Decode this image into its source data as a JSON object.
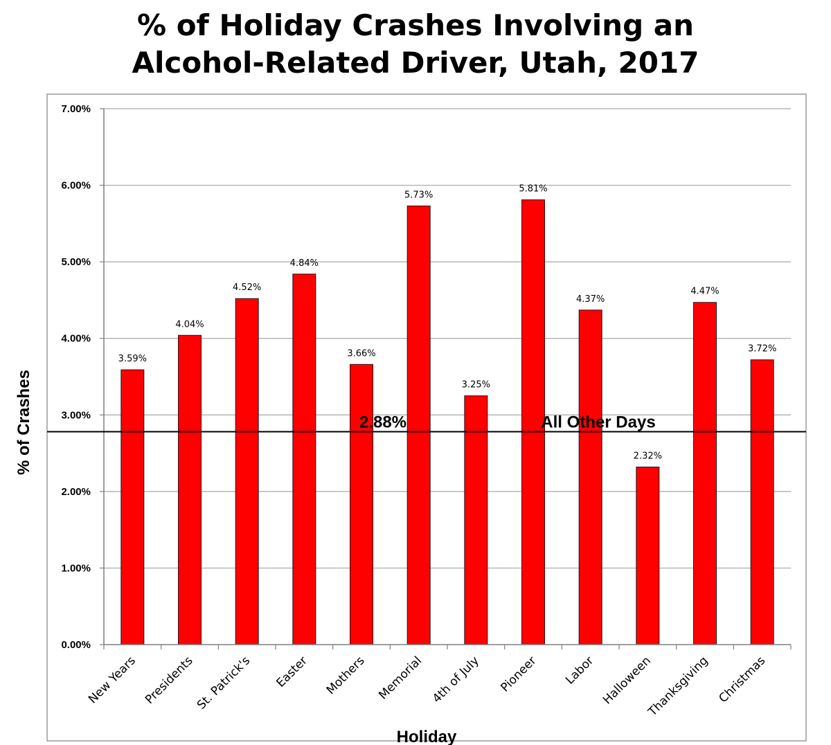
{
  "chart_data": {
    "type": "bar",
    "title_line1": "% of Holiday Crashes Involving an",
    "title_line2": "Alcohol-Related Driver,  Utah, 2017",
    "xlabel": "Holiday",
    "ylabel": "% of Crashes",
    "ylim": [
      0,
      7
    ],
    "yticks": [
      "0.00%",
      "1.00%",
      "2.00%",
      "3.00%",
      "4.00%",
      "5.00%",
      "6.00%",
      "7.00%"
    ],
    "grid": true,
    "bar_color": "#ff0000",
    "categories": [
      "New Years",
      "Presidents",
      "St. Patrick's",
      "Easter",
      "Mothers",
      "Memorial",
      "4th of July",
      "Pioneer",
      "Labor",
      "Halloween",
      "Thanksgiving",
      "Christmas"
    ],
    "values": [
      3.59,
      4.04,
      4.52,
      4.84,
      3.66,
      5.73,
      3.25,
      5.81,
      4.37,
      2.32,
      4.47,
      3.72
    ],
    "data_labels": [
      "3.59%",
      "4.04%",
      "4.52%",
      "4.84%",
      "3.66%",
      "5.73%",
      "3.25%",
      "5.81%",
      "4.37%",
      "2.32%",
      "4.47%",
      "3.72%"
    ],
    "reference_line": {
      "value": 2.88,
      "value_label": "2.88%",
      "text": "All Other Days"
    }
  }
}
